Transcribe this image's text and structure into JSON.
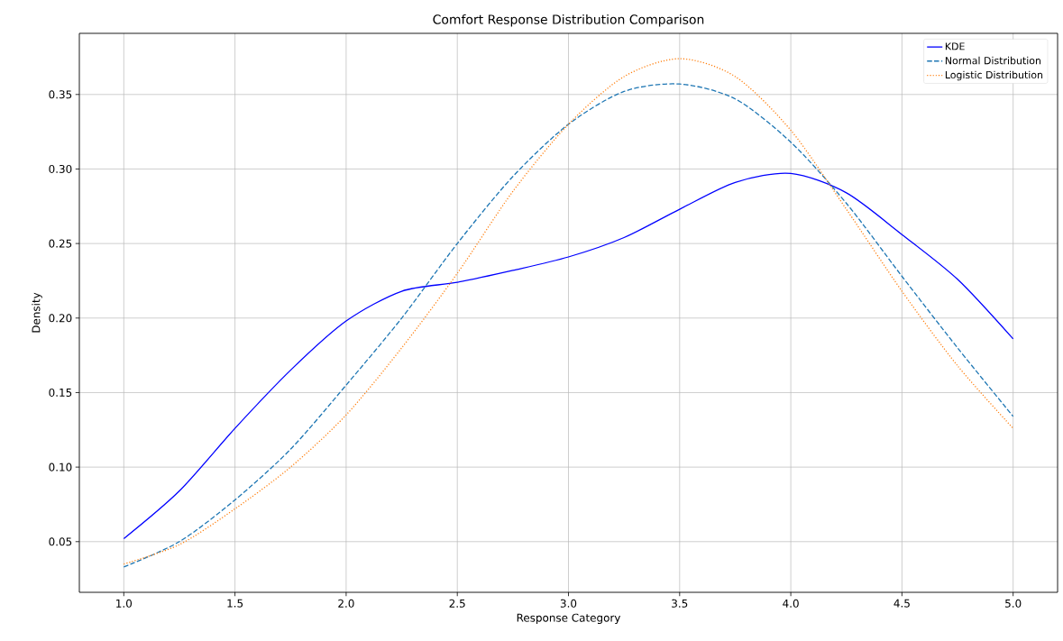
{
  "chart_data": {
    "type": "line",
    "title": "Comfort Response Distribution Comparison",
    "xlabel": "Response Category",
    "ylabel": "Density",
    "xlim": [
      0.8,
      5.2
    ],
    "ylim": [
      0.016,
      0.391
    ],
    "xticks": [
      {
        "value": 1.0,
        "label": "1.0"
      },
      {
        "value": 1.5,
        "label": "1.5"
      },
      {
        "value": 2.0,
        "label": "2.0"
      },
      {
        "value": 2.5,
        "label": "2.5"
      },
      {
        "value": 3.0,
        "label": "3.0"
      },
      {
        "value": 3.5,
        "label": "3.5"
      },
      {
        "value": 4.0,
        "label": "4.0"
      },
      {
        "value": 4.5,
        "label": "4.5"
      },
      {
        "value": 5.0,
        "label": "5.0"
      }
    ],
    "yticks": [
      0.05,
      {
        "value": 0.1,
        "label": "0.10"
      },
      0.15,
      {
        "value": 0.2,
        "label": "0.20"
      },
      0.25,
      {
        "value": 0.3,
        "label": "0.30"
      },
      0.35
    ],
    "grid": true,
    "legend": "top right",
    "marker": "none",
    "x": [
      1.0,
      1.25,
      1.5,
      1.75,
      2.0,
      2.25,
      2.5,
      2.75,
      3.0,
      3.25,
      3.5,
      3.75,
      4.0,
      4.25,
      4.5,
      4.75,
      5.0
    ],
    "series": [
      {
        "name": "KDE",
        "color": "#0000ff",
        "line_style": "solid",
        "values": [
          0.052,
          0.084,
          0.126,
          0.165,
          0.198,
          0.218,
          0.224,
          0.232,
          0.241,
          0.254,
          0.273,
          0.291,
          0.297,
          0.284,
          0.256,
          0.226,
          0.186
        ]
      },
      {
        "name": "Normal Distribution",
        "color": "#1f77b4",
        "line_style": "dashed",
        "values": [
          0.033,
          0.05,
          0.078,
          0.112,
          0.155,
          0.2,
          0.25,
          0.295,
          0.33,
          0.352,
          0.357,
          0.347,
          0.318,
          0.277,
          0.228,
          0.18,
          0.134
        ]
      },
      {
        "name": "Logistic Distribution",
        "color": "#ff7f0e",
        "line_style": "dotted",
        "values": [
          0.035,
          0.048,
          0.072,
          0.1,
          0.135,
          0.18,
          0.23,
          0.285,
          0.33,
          0.362,
          0.374,
          0.362,
          0.326,
          0.273,
          0.218,
          0.168,
          0.126
        ]
      }
    ]
  }
}
